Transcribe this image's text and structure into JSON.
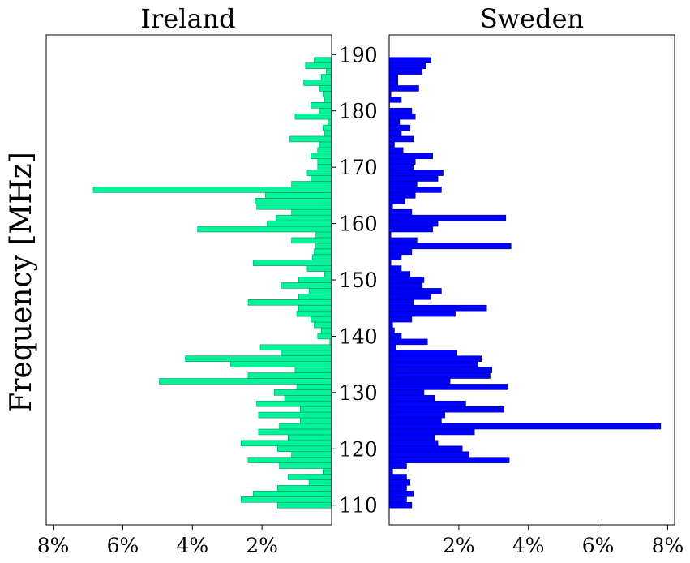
{
  "chart_data": {
    "type": "bar",
    "orientation": "horizontal",
    "ylabel": "Frequency [MHz]",
    "ylim": [
      106.5,
      193.5
    ],
    "yticks": [
      110,
      120,
      130,
      140,
      150,
      160,
      170,
      180,
      190
    ],
    "xlim": [
      0,
      8.2
    ],
    "bin_width_mhz": 1,
    "panels": [
      {
        "title": "Ireland",
        "direction": "inverted",
        "color": "#00f59b",
        "edge_color": "#1a8c5a",
        "xticks": [
          8,
          6,
          4,
          2
        ],
        "xtick_labels": [
          "8%",
          "6%",
          "4%",
          "2%"
        ],
        "bins": [
          110,
          111,
          112,
          113,
          114,
          115,
          116,
          117,
          118,
          119,
          120,
          121,
          122,
          123,
          124,
          125,
          126,
          127,
          128,
          129,
          130,
          131,
          132,
          133,
          134,
          135,
          136,
          137,
          138,
          139,
          140,
          141,
          142,
          143,
          144,
          145,
          146,
          147,
          148,
          149,
          150,
          151,
          152,
          153,
          154,
          155,
          156,
          157,
          158,
          159,
          160,
          161,
          162,
          163,
          164,
          165,
          166,
          167,
          168,
          169,
          170,
          171,
          172,
          173,
          174,
          175,
          176,
          177,
          178,
          179,
          180,
          181,
          182,
          183,
          184,
          185,
          186,
          187,
          188,
          189,
          190
        ],
        "values": [
          1.55,
          2.6,
          2.25,
          1.55,
          0.65,
          1.25,
          0.25,
          1.5,
          2.4,
          1.15,
          1.55,
          2.6,
          1.25,
          2.1,
          1.5,
          0.9,
          2.1,
          0.9,
          2.15,
          1.35,
          1.65,
          1.0,
          4.95,
          2.4,
          1.05,
          2.9,
          4.2,
          1.45,
          2.05,
          0.05,
          0.4,
          0.3,
          0.5,
          0.6,
          1.0,
          0.95,
          2.4,
          0.95,
          0.65,
          1.45,
          0.95,
          0.2,
          0.7,
          2.25,
          0.55,
          0.5,
          0.45,
          1.15,
          0.45,
          3.85,
          1.85,
          1.6,
          1.15,
          2.15,
          2.2,
          1.9,
          6.85,
          1.15,
          0.6,
          0.7,
          0.4,
          0.4,
          0.6,
          0.4,
          0.35,
          1.2,
          0.2,
          0.25,
          0.1,
          1.05,
          0.35,
          0.6,
          0.2,
          0.25,
          0.35,
          0.8,
          0.3,
          0.15,
          0.75,
          0.5
        ]
      },
      {
        "title": "Sweden",
        "direction": "normal",
        "color": "#0000ff",
        "edge_color": "#0000a0",
        "xticks": [
          2,
          4,
          6,
          8
        ],
        "xtick_labels": [
          "2%",
          "4%",
          "6%",
          "8%"
        ],
        "bins": [
          110,
          111,
          112,
          113,
          114,
          115,
          116,
          117,
          118,
          119,
          120,
          121,
          122,
          123,
          124,
          125,
          126,
          127,
          128,
          129,
          130,
          131,
          132,
          133,
          134,
          135,
          136,
          137,
          138,
          139,
          140,
          141,
          142,
          143,
          144,
          145,
          146,
          147,
          148,
          149,
          150,
          151,
          152,
          153,
          154,
          155,
          156,
          157,
          158,
          159,
          160,
          161,
          162,
          163,
          164,
          165,
          166,
          167,
          168,
          169,
          170,
          171,
          172,
          173,
          174,
          175,
          176,
          177,
          178,
          179,
          180,
          181,
          182,
          183,
          184,
          185,
          186,
          187,
          188,
          189,
          190
        ],
        "values": [
          0.65,
          0.5,
          0.7,
          0.5,
          0.6,
          0.5,
          0.1,
          0.5,
          3.45,
          2.3,
          2.1,
          1.4,
          1.3,
          2.45,
          7.8,
          1.5,
          1.6,
          3.3,
          2.2,
          1.3,
          1.0,
          3.4,
          1.75,
          2.9,
          2.95,
          2.55,
          2.65,
          1.95,
          0.2,
          1.1,
          0.35,
          0.15,
          0.1,
          0.65,
          1.9,
          2.8,
          0.7,
          1.2,
          1.5,
          0.95,
          1.0,
          0.6,
          0.35,
          0.05,
          0.35,
          0.65,
          3.5,
          0.8,
          0.05,
          1.25,
          1.4,
          3.35,
          0.65,
          0.1,
          0.45,
          0.75,
          1.5,
          0.8,
          1.4,
          1.55,
          0.7,
          0.75,
          1.25,
          0.4,
          0.15,
          0.7,
          0.35,
          0.6,
          0.3,
          0.75,
          0.65,
          0.0,
          0.35,
          0.05,
          0.85,
          0.25,
          0.25,
          0.95,
          1.05,
          1.2
        ]
      }
    ]
  }
}
